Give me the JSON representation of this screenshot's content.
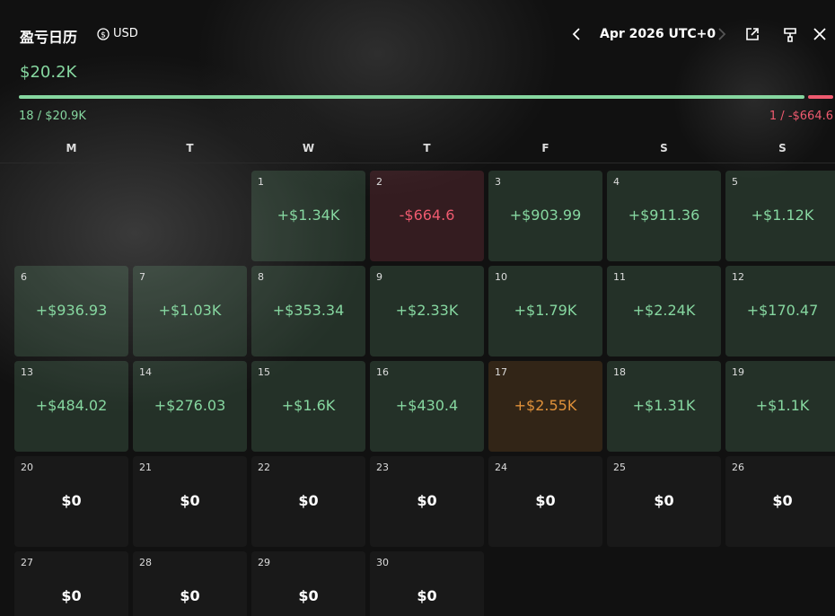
{
  "header": {
    "title": "盈亏日历",
    "currency": "USD",
    "month": "Apr 2026 UTC+0"
  },
  "summary": {
    "total": "$20.2K",
    "total_color": "#86d7a0",
    "wins": {
      "count": "18",
      "separator": "/",
      "amount": "$20.9K",
      "color": "#86d7a0"
    },
    "losses": {
      "count": "1",
      "separator": "/",
      "amount": "-$664.6",
      "color": "#ef5a6f"
    }
  },
  "weekdays": [
    "M",
    "T",
    "W",
    "T",
    "F",
    "S",
    "S"
  ],
  "days": [
    {
      "day": "1",
      "label": "+$1.34K",
      "color": "#86d7a0"
    },
    {
      "day": "2",
      "label": "-$664.6",
      "color": "#ef5a6f"
    },
    {
      "day": "3",
      "label": "+$903.99",
      "color": "#86d7a0"
    },
    {
      "day": "4",
      "label": "+$911.36",
      "color": "#86d7a0"
    },
    {
      "day": "5",
      "label": "+$1.12K",
      "color": "#86d7a0"
    },
    {
      "day": "6",
      "label": "+$936.93",
      "color": "#86d7a0"
    },
    {
      "day": "7",
      "label": "+$1.03K",
      "color": "#86d7a0"
    },
    {
      "day": "8",
      "label": "+$353.34",
      "color": "#86d7a0"
    },
    {
      "day": "9",
      "label": "+$2.33K",
      "color": "#86d7a0"
    },
    {
      "day": "10",
      "label": "+$1.79K",
      "color": "#86d7a0"
    },
    {
      "day": "11",
      "label": "+$2.24K",
      "color": "#86d7a0"
    },
    {
      "day": "12",
      "label": "+$170.47",
      "color": "#86d7a0"
    },
    {
      "day": "13",
      "label": "+$484.02",
      "color": "#86d7a0"
    },
    {
      "day": "14",
      "label": "+$276.03",
      "color": "#86d7a0"
    },
    {
      "day": "15",
      "label": "+$1.6K",
      "color": "#86d7a0"
    },
    {
      "day": "16",
      "label": "+$430.4",
      "color": "#86d7a0"
    },
    {
      "day": "17",
      "label": "+$2.55K",
      "color": "#e0913a"
    },
    {
      "day": "18",
      "label": "+$1.31K",
      "color": "#86d7a0"
    },
    {
      "day": "19",
      "label": "+$1.1K",
      "color": "#86d7a0"
    },
    {
      "day": "20",
      "label": "$0",
      "color": "#ffffff"
    },
    {
      "day": "21",
      "label": "$0",
      "color": "#ffffff"
    },
    {
      "day": "22",
      "label": "$0",
      "color": "#ffffff"
    },
    {
      "day": "23",
      "label": "$0",
      "color": "#ffffff"
    },
    {
      "day": "24",
      "label": "$0",
      "color": "#ffffff"
    },
    {
      "day": "25",
      "label": "$0",
      "color": "#ffffff"
    },
    {
      "day": "26",
      "label": "$0",
      "color": "#ffffff"
    },
    {
      "day": "27",
      "label": "$0",
      "color": "#ffffff"
    },
    {
      "day": "28",
      "label": "$0",
      "color": "#ffffff"
    },
    {
      "day": "29",
      "label": "$0",
      "color": "#ffffff"
    },
    {
      "day": "30",
      "label": "$0",
      "color": "#ffffff"
    }
  ]
}
